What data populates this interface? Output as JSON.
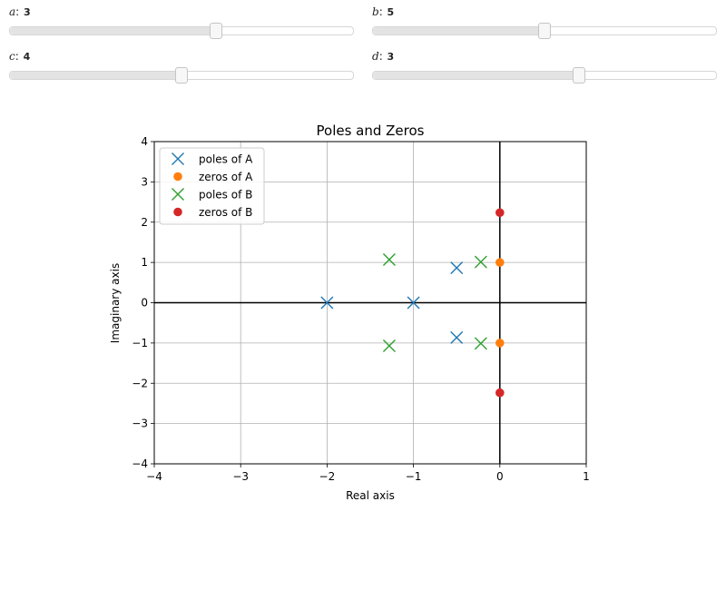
{
  "sliders": [
    {
      "var": "a",
      "value": "3",
      "fraction": 0.6
    },
    {
      "var": "b",
      "value": "5",
      "fraction": 0.5
    },
    {
      "var": "c",
      "value": "4",
      "fraction": 0.5
    },
    {
      "var": "d",
      "value": "3",
      "fraction": 0.6
    }
  ],
  "chart_data": {
    "type": "scatter",
    "title": "Poles and Zeros",
    "xlabel": "Real axis",
    "ylabel": "Imaginary axis",
    "xlim": [
      -4,
      1
    ],
    "ylim": [
      -4,
      4
    ],
    "xticks": [
      -4,
      -3,
      -2,
      -1,
      0,
      1
    ],
    "yticks": [
      -4,
      -3,
      -2,
      -1,
      0,
      1,
      2,
      3,
      4
    ],
    "xtick_labels": [
      "−4",
      "−3",
      "−2",
      "−1",
      "0",
      "1"
    ],
    "ytick_labels": [
      "−4",
      "−3",
      "−2",
      "−1",
      "0",
      "1",
      "2",
      "3",
      "4"
    ],
    "grid": true,
    "legend": "top-left",
    "series": [
      {
        "name": "poles of A",
        "marker": "x",
        "color": "#1f77b4",
        "points": [
          [
            -2,
            0
          ],
          [
            -1,
            0
          ],
          [
            -0.5,
            0.866
          ],
          [
            -0.5,
            -0.866
          ]
        ]
      },
      {
        "name": "zeros of A",
        "marker": "o",
        "color": "#ff7f0e",
        "points": [
          [
            0,
            1
          ],
          [
            0,
            -1
          ]
        ]
      },
      {
        "name": "poles of B",
        "marker": "x",
        "color": "#2ca02c",
        "points": [
          [
            -1.28,
            1.07
          ],
          [
            -1.28,
            -1.07
          ],
          [
            -0.22,
            1.01
          ],
          [
            -0.22,
            -1.01
          ]
        ]
      },
      {
        "name": "zeros of B",
        "marker": "o",
        "color": "#d62728",
        "points": [
          [
            0,
            2.236
          ],
          [
            0,
            -2.236
          ]
        ]
      }
    ]
  }
}
